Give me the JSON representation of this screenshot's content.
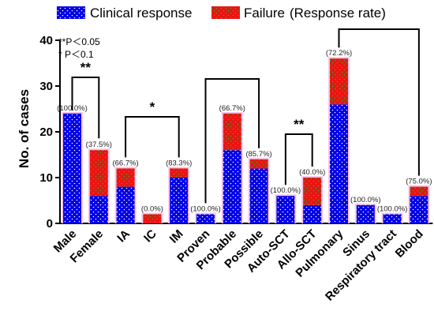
{
  "chart_data": {
    "type": "bar",
    "stacked": true,
    "categories": [
      "Male",
      "Female",
      "IA",
      "IC",
      "IM",
      "Proven",
      "Probable",
      "Possible",
      "Auto-SCT",
      "Allo-SCT",
      "Pulmonary",
      "Sinus",
      "Respiratory tract",
      "Blood"
    ],
    "series": [
      {
        "name": "Clinical response",
        "color": "#0000e6",
        "values": [
          24,
          6,
          8,
          0,
          10,
          2,
          16,
          12,
          6,
          4,
          26,
          4,
          2,
          6
        ]
      },
      {
        "name": "Failure",
        "color": "#ee1111",
        "values": [
          0,
          10,
          4,
          2,
          2,
          0,
          8,
          2,
          0,
          6,
          10,
          0,
          0,
          2
        ]
      }
    ],
    "response_rates": [
      "(100.0%)",
      "(37.5%)",
      "(66.7%)",
      "(0.0%)",
      "(83.3%)",
      "(100.0%)",
      "(66.7%)",
      "(85.7%)",
      "(100.0%)",
      "(40.0%)",
      "(72.2%)",
      "(100.0%)",
      "(100.0%)",
      "(75.0%)"
    ],
    "legend_suffix": "(Response rate)",
    "ylabel": "No. of cases",
    "ylim": [
      0,
      40
    ],
    "yticks": [
      0,
      10,
      20,
      30,
      40
    ],
    "legend_position": "top",
    "notes": [
      "**P＜0.05",
      "* P＜0.1"
    ],
    "significance": [
      {
        "from": "Male",
        "to": "Female",
        "label": "**"
      },
      {
        "from": "IA",
        "to": "IM",
        "label": "*"
      },
      {
        "from": "Auto-SCT",
        "to": "Allo-SCT",
        "label": "**"
      },
      {
        "from": "Proven",
        "to": "Possible",
        "label": ""
      },
      {
        "from": "Pulmonary",
        "to": "Blood",
        "label": ""
      }
    ]
  }
}
